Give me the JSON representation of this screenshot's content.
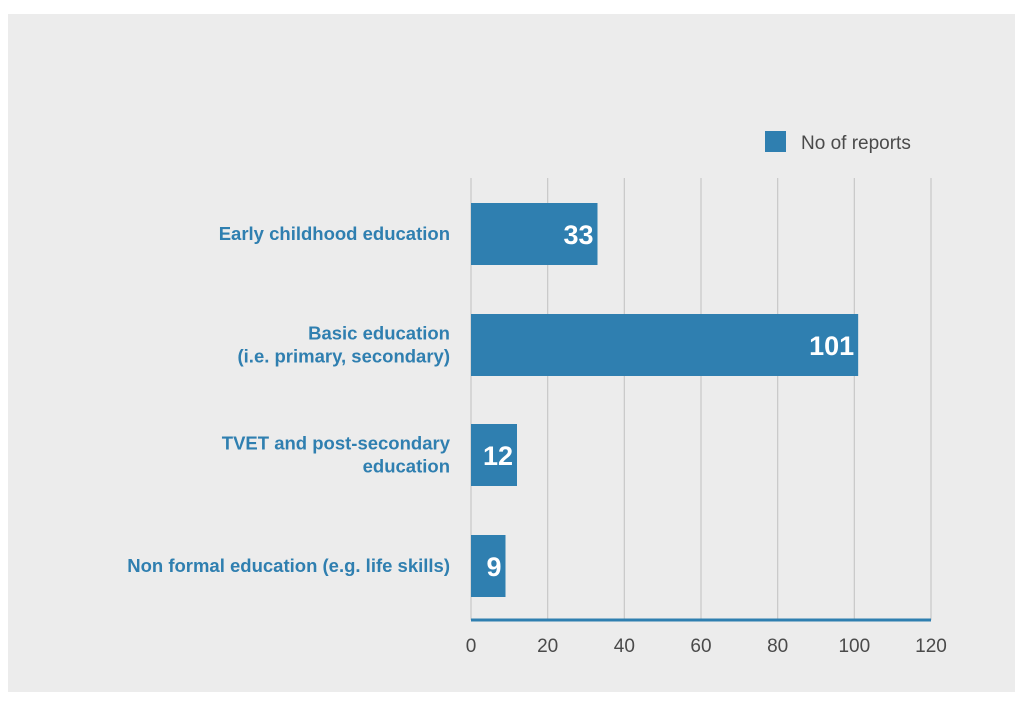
{
  "chart_data": {
    "type": "bar",
    "orientation": "horizontal",
    "title": "",
    "xlabel": "",
    "ylabel": "",
    "categories": [
      [
        "Early childhood education"
      ],
      [
        "Basic education",
        "(i.e. primary, secondary)"
      ],
      [
        "TVET and post-secondary",
        "education"
      ],
      [
        "Non formal education (e.g. life skills)"
      ]
    ],
    "series": [
      {
        "name": "No of reports",
        "values": [
          33,
          101,
          12,
          9
        ]
      }
    ],
    "xlim": [
      0,
      120
    ],
    "xticks": [
      "0",
      "20",
      "40",
      "60",
      "80",
      "100",
      "120"
    ],
    "data_labels": [
      "33",
      "101",
      "12",
      "9"
    ],
    "grid": "vertical",
    "legend_position": "top-right",
    "colors": {
      "bar": "#2f7fb0",
      "category_text": "#2f7fb0",
      "gridline": "#c8c8c8",
      "background": "#ececec"
    }
  }
}
